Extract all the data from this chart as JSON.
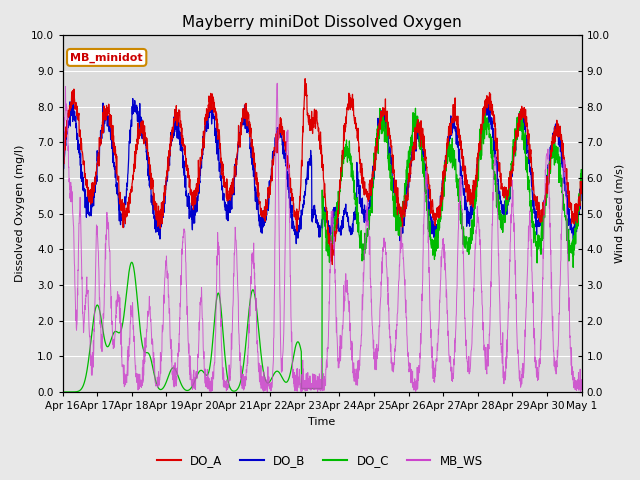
{
  "title": "Mayberry miniDot Dissolved Oxygen",
  "xlabel": "Time",
  "ylabel_left": "Dissolved Oxygen (mg/l)",
  "ylabel_right": "Wind Speed (m/s)",
  "ylim": [
    0.0,
    10.0
  ],
  "yticks": [
    0.0,
    1.0,
    2.0,
    3.0,
    4.0,
    5.0,
    6.0,
    7.0,
    8.0,
    9.0,
    10.0
  ],
  "xtick_labels": [
    "Apr 16",
    "Apr 17",
    "Apr 18",
    "Apr 19",
    "Apr 20",
    "Apr 21",
    "Apr 22",
    "Apr 23",
    "Apr 24",
    "Apr 25",
    "Apr 26",
    "Apr 27",
    "Apr 28",
    "Apr 29",
    "Apr 30",
    "May 1"
  ],
  "colors": {
    "DO_A": "#dd0000",
    "DO_B": "#0000cc",
    "DO_C": "#00bb00",
    "MB_WS": "#cc44cc"
  },
  "inset_label": "MB_minidot",
  "inset_label_color": "#cc0000",
  "inset_box_edge_color": "#cc8800",
  "bg_color": "#e8e8e8",
  "plot_bg_color": "#dcdcdc",
  "grid_color": "#ffffff",
  "title_fontsize": 11,
  "axis_fontsize": 8,
  "tick_fontsize": 7.5
}
